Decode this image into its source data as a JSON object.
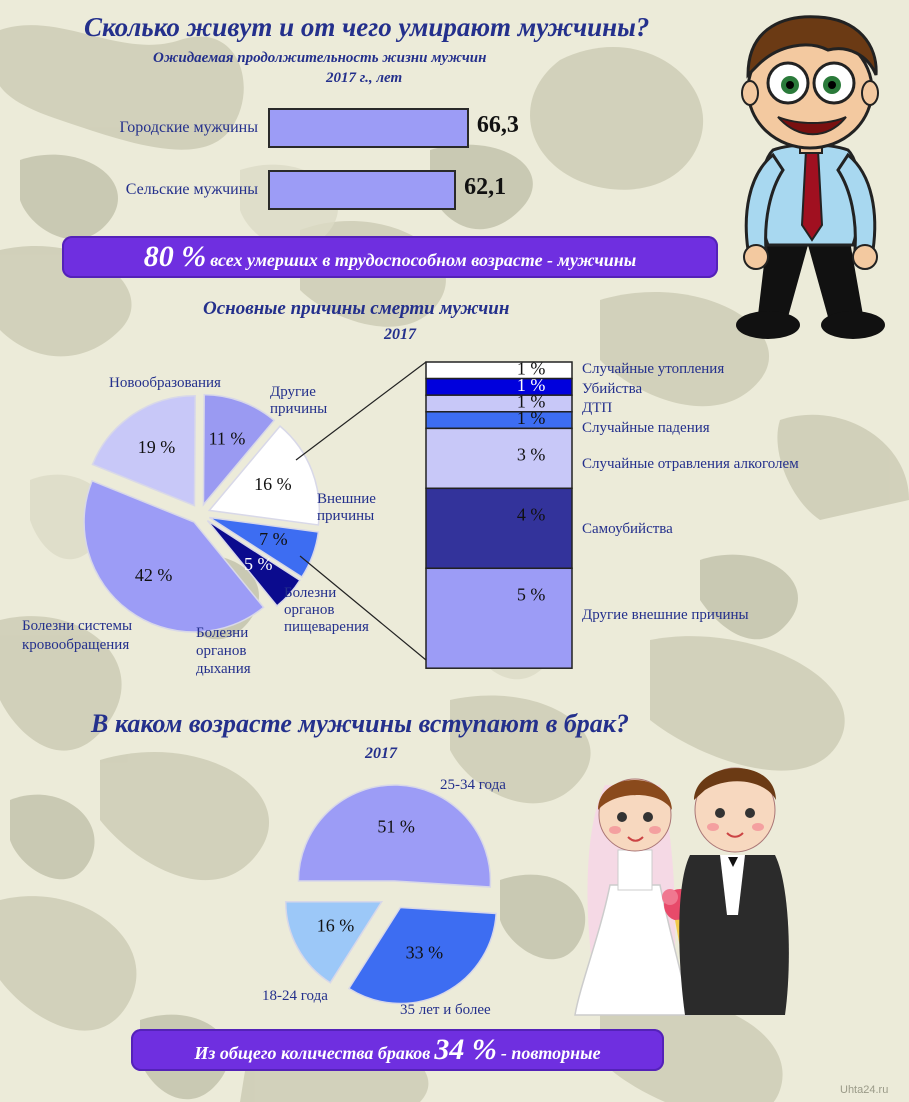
{
  "header": {
    "title": "Сколько живут и от чего умирают мужчины?",
    "subtitle": "Ожидаемая продолжительность жизни мужчин",
    "unit_line": "2017 г., лет"
  },
  "banners": {
    "top_percent": "80 %",
    "top_text": "всех умерших в трудоспособном возрасте - мужчины",
    "bottom_text": "Из общего количества браков",
    "bottom_percent": "34 %",
    "bottom_suffix": "- повторные"
  },
  "section2": {
    "title": "Основные причины смерти мужчин",
    "year": "2017"
  },
  "section3": {
    "title": "В каком возрасте мужчины вступают в брак?",
    "year": "2017"
  },
  "watermark": "Uhta24.ru",
  "colors": {
    "title": "#24308c",
    "banner": "#6f2fe0",
    "bar": "#9c9cf6"
  },
  "chart_data": [
    {
      "type": "bar",
      "orientation": "horizontal",
      "categories": [
        "Городские мужчины",
        "Сельские мужчины"
      ],
      "values": [
        66.3,
        62.1
      ],
      "value_labels": [
        "66,3",
        "62,1"
      ]
    },
    {
      "type": "pie",
      "slices": [
        {
          "label": "Внешние причины",
          "value": 16,
          "value_label": "16 %",
          "color": "#ffffff"
        },
        {
          "label": "Болезни органов пищеварения",
          "value": 7,
          "value_label": "7 %",
          "color": "#3d6df2"
        },
        {
          "label": "Болезни органов дыхания",
          "value": 5,
          "value_label": "5 %",
          "color": "#0b0b8e"
        },
        {
          "label": "Болезни системы кровообращения",
          "value": 42,
          "value_label": "42 %",
          "color": "#9c9cf6"
        },
        {
          "label": "Новообразования",
          "value": 19,
          "value_label": "19 %",
          "color": "#c8c8f8"
        },
        {
          "label": "Другие причины",
          "value": 11,
          "value_label": "11 %",
          "color": "#9a9af2"
        }
      ]
    },
    {
      "type": "bar",
      "orientation": "stacked",
      "categories": [
        "Случайные утопления",
        "Убийства",
        "ДТП",
        "Случайные падения",
        "Случайные отравления алкоголем",
        "Самоубийства",
        "Другие внешние причины"
      ],
      "values": [
        1,
        1,
        1,
        1,
        3,
        4,
        5
      ],
      "value_labels": [
        "1 %",
        "1 %",
        "1 %",
        "1 %",
        "3 %",
        "4 %",
        "5 %"
      ],
      "colors": [
        "#ffffff",
        "#0000dd",
        "#c8c8f8",
        "#3d6df2",
        "#c8c8f8",
        "#33339b",
        "#9c9cf6"
      ]
    },
    {
      "type": "pie",
      "slices": [
        {
          "label": "25-34 года",
          "value": 51,
          "value_label": "51 %",
          "color": "#9c9cf6"
        },
        {
          "label": "35 лет и более",
          "value": 33,
          "value_label": "33 %",
          "color": "#3d6df2"
        },
        {
          "label": "18-24 года",
          "value": 16,
          "value_label": "16 %",
          "color": "#9cc8f8"
        }
      ]
    }
  ]
}
